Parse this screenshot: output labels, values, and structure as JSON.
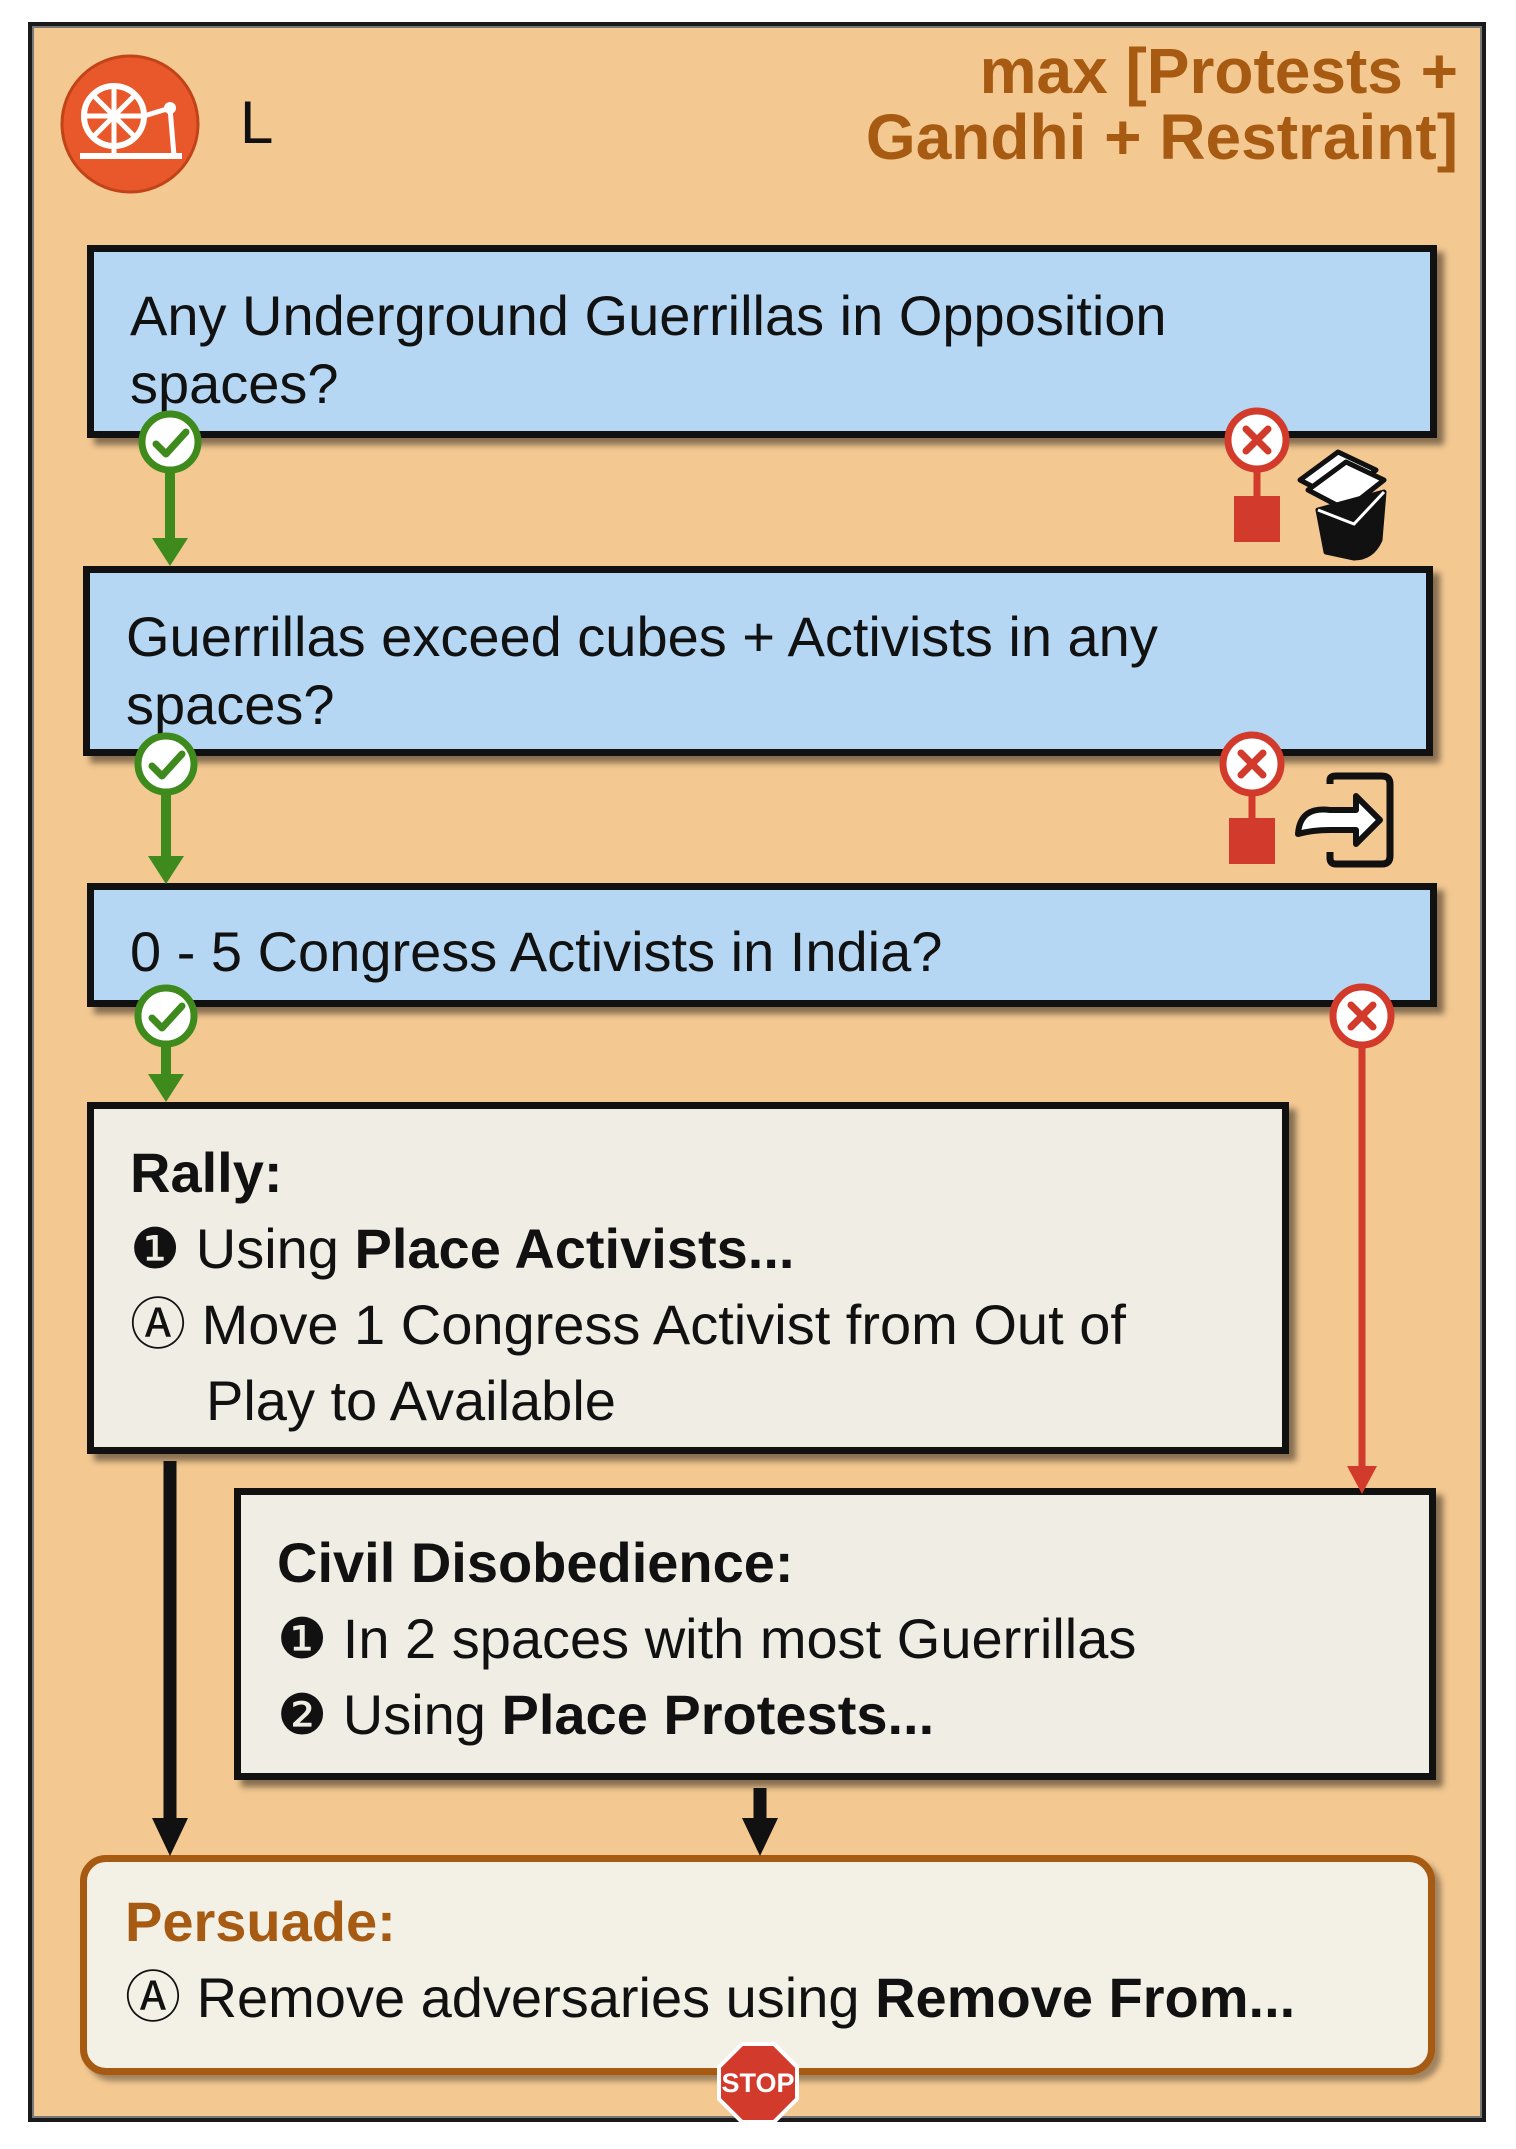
{
  "header": {
    "title_line1": "max [Protests +",
    "title_line2": "Gandhi + Restraint]",
    "code": "L"
  },
  "questions": [
    {
      "text": "Any Underground Guerrillas in Opposition spaces?"
    },
    {
      "text": "Guerrillas exceed cubes + Activists in any spaces?"
    },
    {
      "text": "0 - 5 Congress Activists in India?"
    }
  ],
  "rally": {
    "heading": "Rally:",
    "step1_marker": "❶",
    "step1_text": "Using ",
    "step1_bold": "Place Activists...",
    "stepA_marker": "Ⓐ",
    "stepA_line1": "Move 1 Congress Activist from Out of",
    "stepA_line2": "Play to Available"
  },
  "civil": {
    "heading": "Civil Disobedience:",
    "step1_marker": "❶",
    "step1_text": "In 2 spaces with most Guerrillas",
    "step2_marker": "❷",
    "step2_text": "Using ",
    "step2_bold": "Place Protests..."
  },
  "persuade": {
    "heading": "Persuade:",
    "stepA_marker": "Ⓐ",
    "stepA_text": "Remove adversaries using ",
    "stepA_bold": "Remove From..."
  },
  "stop_label": "STOP",
  "icons": {
    "faction": "spinning-wheel-icon",
    "yes": "check-circle-icon",
    "no": "x-circle-icon",
    "cards": "card-deck-icon",
    "exit": "exit-door-icon",
    "stop": "stop-sign-icon"
  },
  "colors": {
    "yes": "#3f8a1c",
    "no": "#d23a2c",
    "question_fill": "#b6d7f3",
    "accent": "#a65a12",
    "background": "#f3c891"
  }
}
